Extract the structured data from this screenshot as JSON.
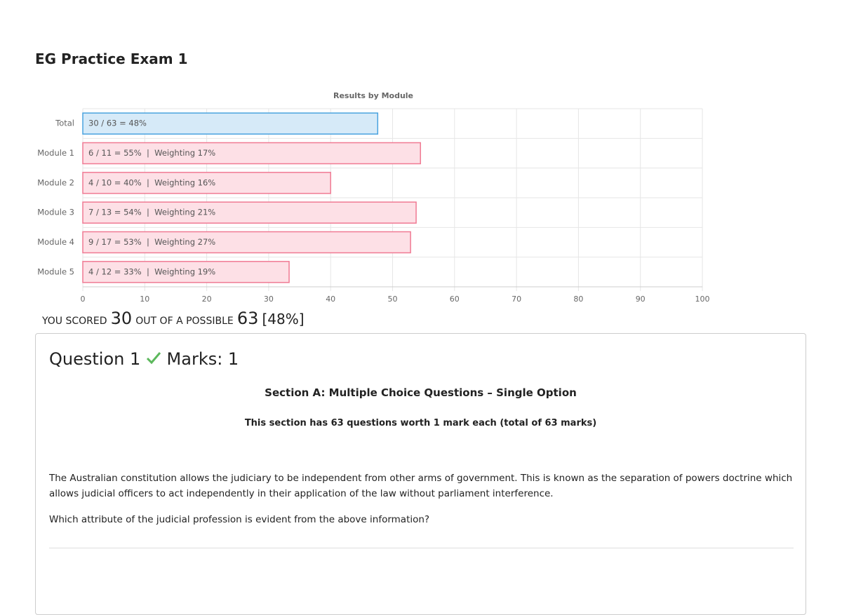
{
  "header": {
    "title": "EG Practice Exam 1"
  },
  "chart_data": {
    "type": "bar",
    "orientation": "horizontal",
    "title": "Results by Module",
    "categories": [
      "Total",
      "Module 1",
      "Module 2",
      "Module 3",
      "Module 4",
      "Module 5"
    ],
    "values": [
      47.6,
      54.5,
      40,
      53.8,
      52.9,
      33.3
    ],
    "value_labels": [
      "30 / 63 = 48%",
      "6 / 11 = 55%  |  Weighting 17%",
      "4 / 10 = 40%  |  Weighting 16%",
      "7 / 13 = 54%  |  Weighting 21%",
      "9 / 17 = 53%  |  Weighting 27%",
      "4 / 12 = 33%  |  Weighting 19%"
    ],
    "colors": [
      "#d6eaf8",
      "#fde0e6",
      "#fde0e6",
      "#fde0e6",
      "#fde0e6",
      "#fde0e6"
    ],
    "border_colors": [
      "#4aa3df",
      "#f07a93",
      "#f07a93",
      "#f07a93",
      "#f07a93",
      "#f07a93"
    ],
    "xlim": [
      0,
      100
    ],
    "xticks": [
      0,
      10,
      20,
      30,
      40,
      50,
      60,
      70,
      80,
      90,
      100
    ],
    "grid": true
  },
  "score": {
    "prefix": "YOU SCORED",
    "scored": "30",
    "middle": "OUT OF A POSSIBLE",
    "possible": "63",
    "percent": "[48%]"
  },
  "question": {
    "title": "Question 1",
    "marks": "Marks: 1",
    "section": "Section A: Multiple Choice Questions – Single Option",
    "section_note": "This section has 63 questions worth 1 mark each (total of 63 marks)",
    "paragraphs": [
      "The Australian constitution allows the judiciary to be independent from other arms of government. This is known as the separation of powers doctrine which allows judicial officers to act independently in their application of the law without parliament interference.",
      "Which attribute of the judicial profession is evident from the above information?"
    ]
  }
}
